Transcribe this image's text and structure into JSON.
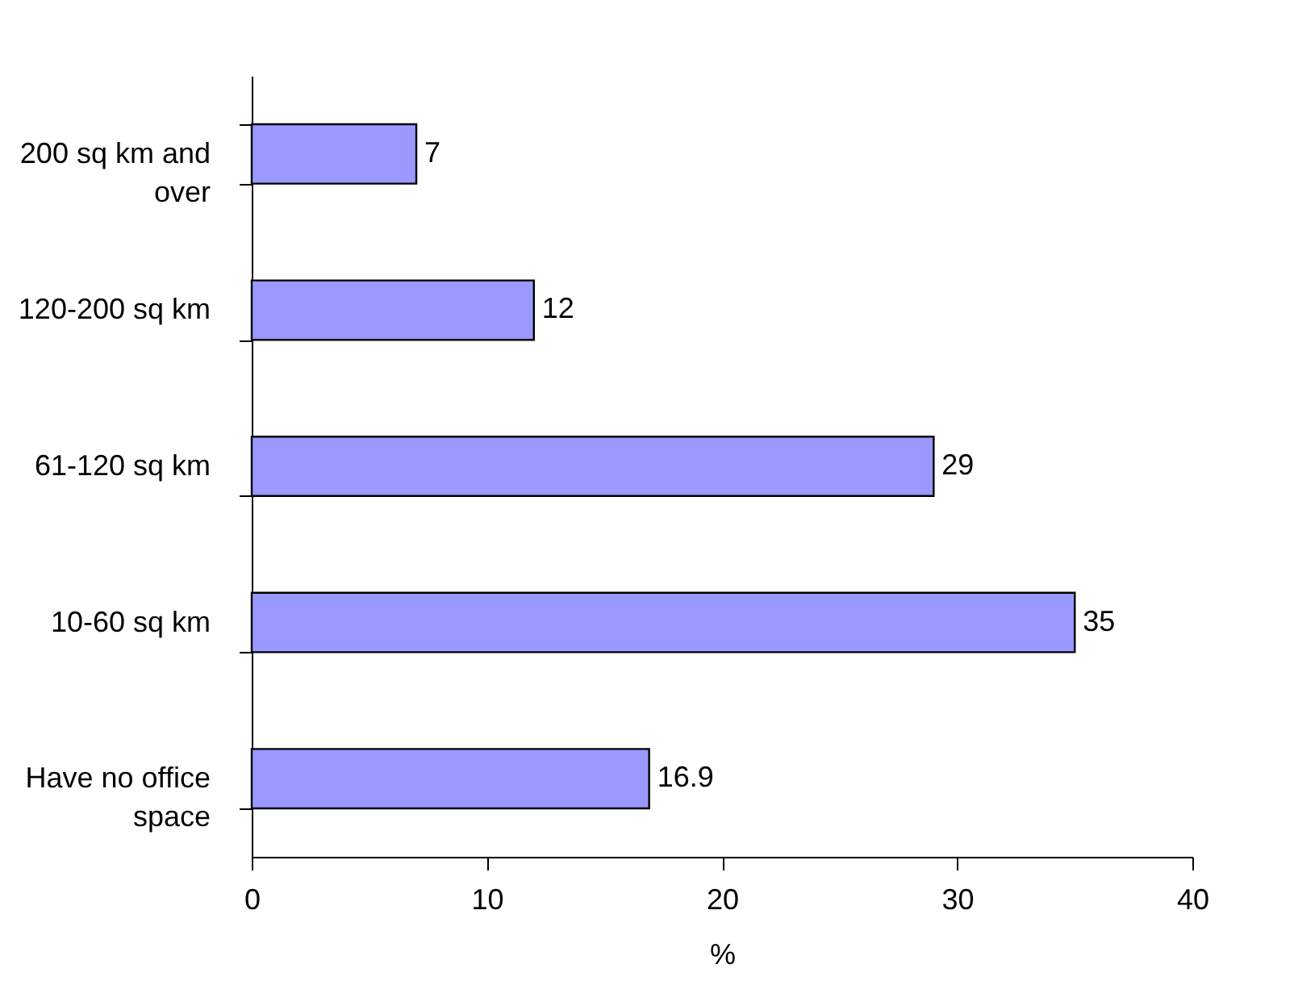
{
  "chart_data": {
    "type": "bar",
    "orientation": "horizontal",
    "xlabel": "%",
    "categories": [
      "200 sq km and over",
      "120-200 sq km",
      "61-120 sq km",
      "10-60 sq km",
      "Have no office space"
    ],
    "values": [
      7,
      12,
      29,
      35,
      16.9
    ],
    "color": "#9999ff",
    "xlim": [
      0,
      40
    ],
    "xticks": [
      0,
      10,
      20,
      30,
      40
    ],
    "data_labels": true,
    "grid": false
  }
}
